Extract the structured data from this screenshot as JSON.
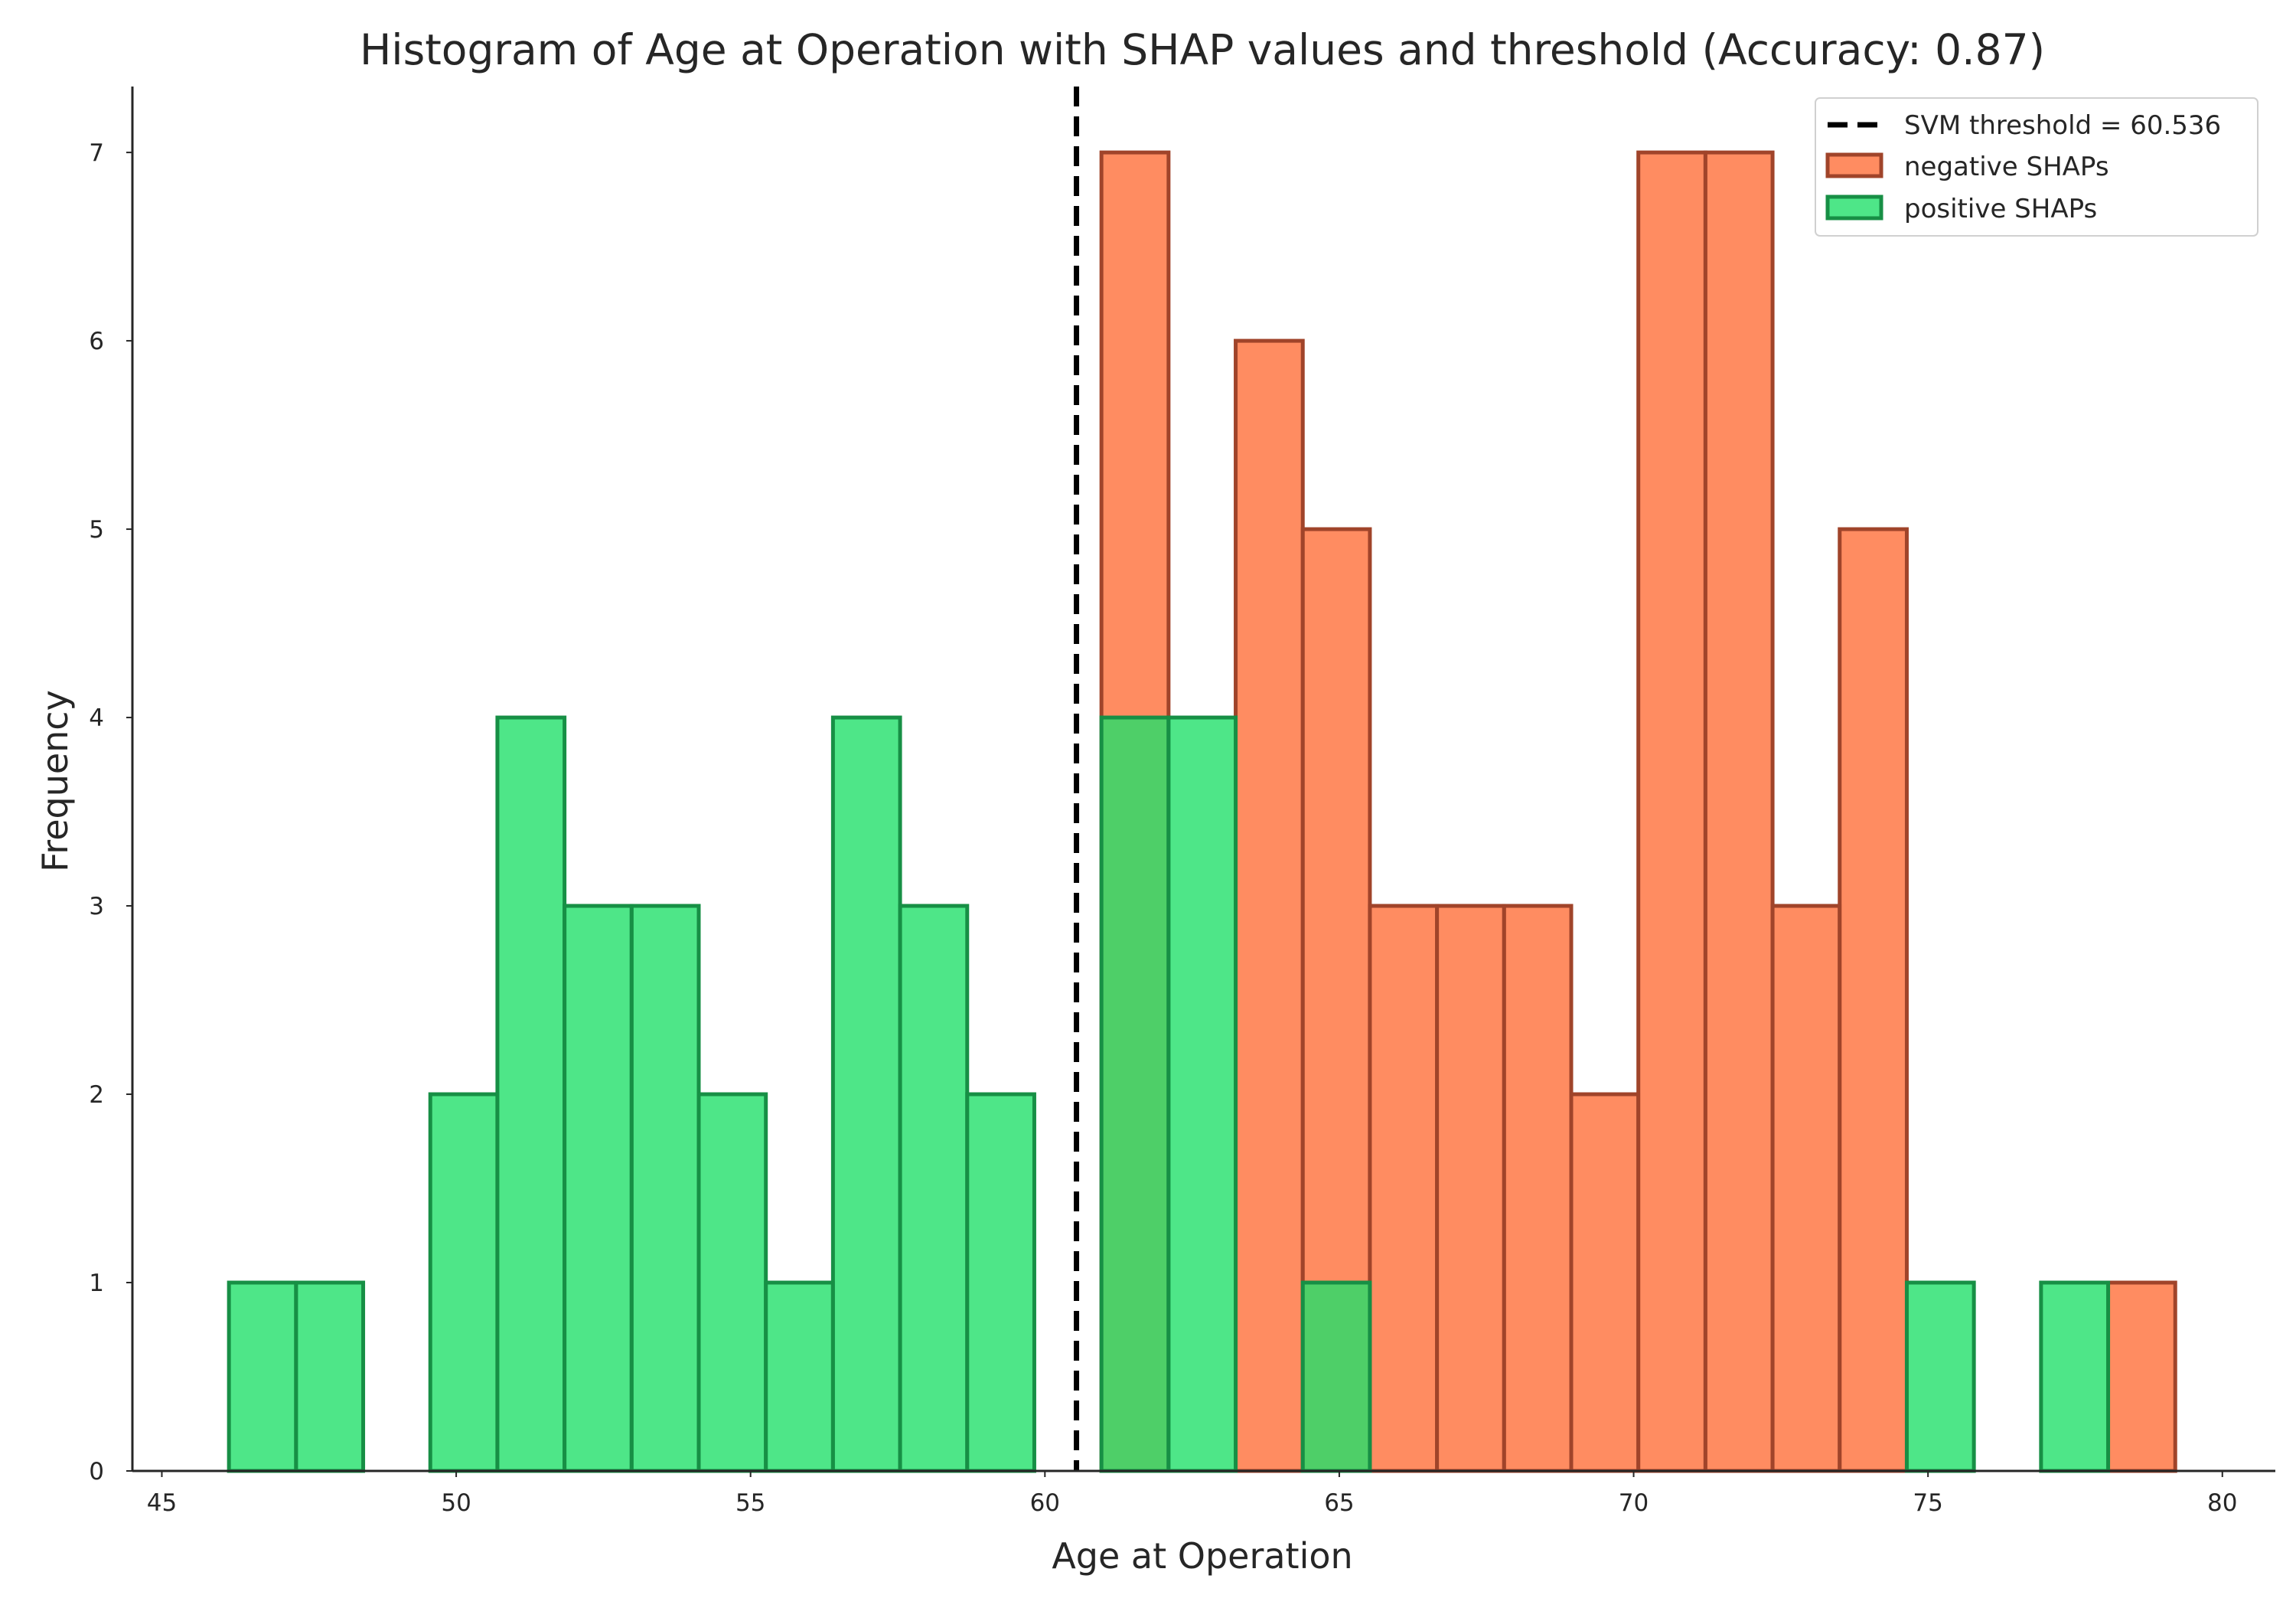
{
  "chart_data": {
    "type": "bar",
    "title": "Histogram of Age at Operation with SHAP values and threshold (Accuracy: 0.87)",
    "xlabel": "Age at Operation",
    "ylabel": "Frequency",
    "xlim": [
      44.5,
      80.9
    ],
    "ylim": [
      0,
      7.35
    ],
    "xticks": [
      45,
      50,
      55,
      60,
      65,
      70,
      75,
      80
    ],
    "yticks": [
      0,
      1,
      2,
      3,
      4,
      5,
      6,
      7
    ],
    "grid": false,
    "legend_position": "top-right",
    "threshold": {
      "label": "SVM threshold = 60.536",
      "value": 60.536,
      "style": "dashed",
      "color": "#000000"
    },
    "bin_edges": [
      46.14,
      47.28,
      48.42,
      49.56,
      50.7,
      51.84,
      52.98,
      54.12,
      55.26,
      56.4,
      57.54,
      58.68,
      59.82,
      60.96,
      62.1,
      63.24,
      64.38,
      65.52,
      66.66,
      67.8,
      68.94,
      70.08,
      71.22,
      72.36,
      73.5,
      74.64,
      75.78,
      76.92,
      78.06,
      79.2
    ],
    "series": [
      {
        "name": "negative SHAPs",
        "color": "#ff7f50",
        "edge_color": "#a0442a",
        "values": [
          0,
          0,
          0,
          0,
          0,
          0,
          0,
          0,
          0,
          0,
          0,
          0,
          0,
          7,
          0,
          6,
          5,
          3,
          3,
          3,
          2,
          7,
          7,
          3,
          5,
          0,
          0,
          0,
          1
        ]
      },
      {
        "name": "positive SHAPs",
        "color": "#22e06a",
        "edge_color": "#178f45",
        "values": [
          1,
          1,
          0,
          2,
          4,
          3,
          3,
          2,
          1,
          4,
          3,
          2,
          0,
          4,
          4,
          0,
          1,
          0,
          0,
          0,
          0,
          0,
          0,
          0,
          0,
          1,
          0,
          1,
          0
        ]
      }
    ]
  }
}
